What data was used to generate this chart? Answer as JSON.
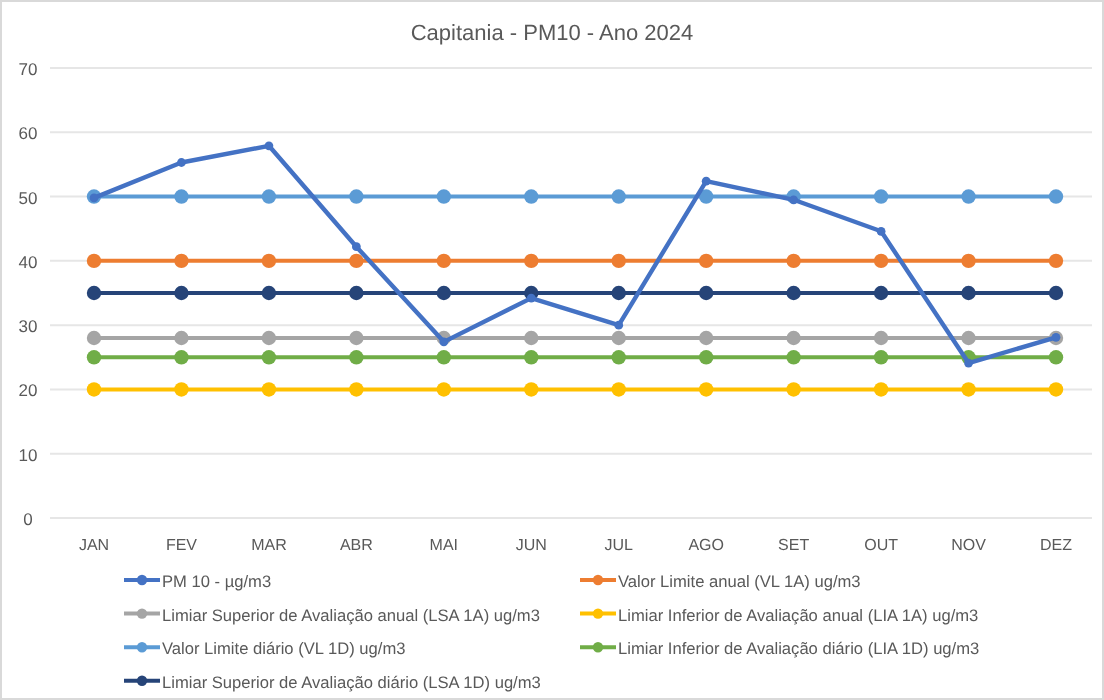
{
  "chart_data": {
    "type": "line",
    "title": "Capitania - PM10 - Ano 2024",
    "categories": [
      "JAN",
      "FEV",
      "MAR",
      "ABR",
      "MAI",
      "JUN",
      "JUL",
      "AGO",
      "SET",
      "OUT",
      "NOV",
      "DEZ"
    ],
    "series": [
      {
        "name": "PM 10 - µg/m3",
        "color": "#4472c4",
        "values": [
          49.8,
          55.3,
          57.9,
          42.2,
          27.4,
          34.2,
          30.0,
          52.4,
          49.5,
          44.6,
          24.1,
          28.1
        ]
      },
      {
        "name": "Valor Limite anual (VL 1A) ug/m3",
        "color": "#ed7d31",
        "values": [
          40,
          40,
          40,
          40,
          40,
          40,
          40,
          40,
          40,
          40,
          40,
          40
        ]
      },
      {
        "name": "Limiar Superior de Avaliação anual (LSA 1A) ug/m3",
        "color": "#a5a5a5",
        "values": [
          28,
          28,
          28,
          28,
          28,
          28,
          28,
          28,
          28,
          28,
          28,
          28
        ]
      },
      {
        "name": "Limiar Inferior de Avaliação anual (LIA 1A) ug/m3",
        "color": "#ffc000",
        "values": [
          20,
          20,
          20,
          20,
          20,
          20,
          20,
          20,
          20,
          20,
          20,
          20
        ]
      },
      {
        "name": "Valor Limite diário (VL 1D) ug/m3",
        "color": "#5b9bd5",
        "values": [
          50,
          50,
          50,
          50,
          50,
          50,
          50,
          50,
          50,
          50,
          50,
          50
        ]
      },
      {
        "name": "Limiar Inferior de Avaliação diário (LIA 1D) ug/m3",
        "color": "#70ad47",
        "values": [
          25,
          25,
          25,
          25,
          25,
          25,
          25,
          25,
          25,
          25,
          25,
          25
        ]
      },
      {
        "name": "Limiar Superior de Avaliação diário (LSA 1D) ug/m3",
        "color": "#264478",
        "values": [
          35,
          35,
          35,
          35,
          35,
          35,
          35,
          35,
          35,
          35,
          35,
          35
        ]
      }
    ],
    "ylim": [
      0,
      70
    ],
    "yticks": [
      0,
      10,
      20,
      30,
      40,
      50,
      60,
      70
    ],
    "grid": "y",
    "legend": "bottom",
    "marker": "circle",
    "line_style": "solid"
  }
}
